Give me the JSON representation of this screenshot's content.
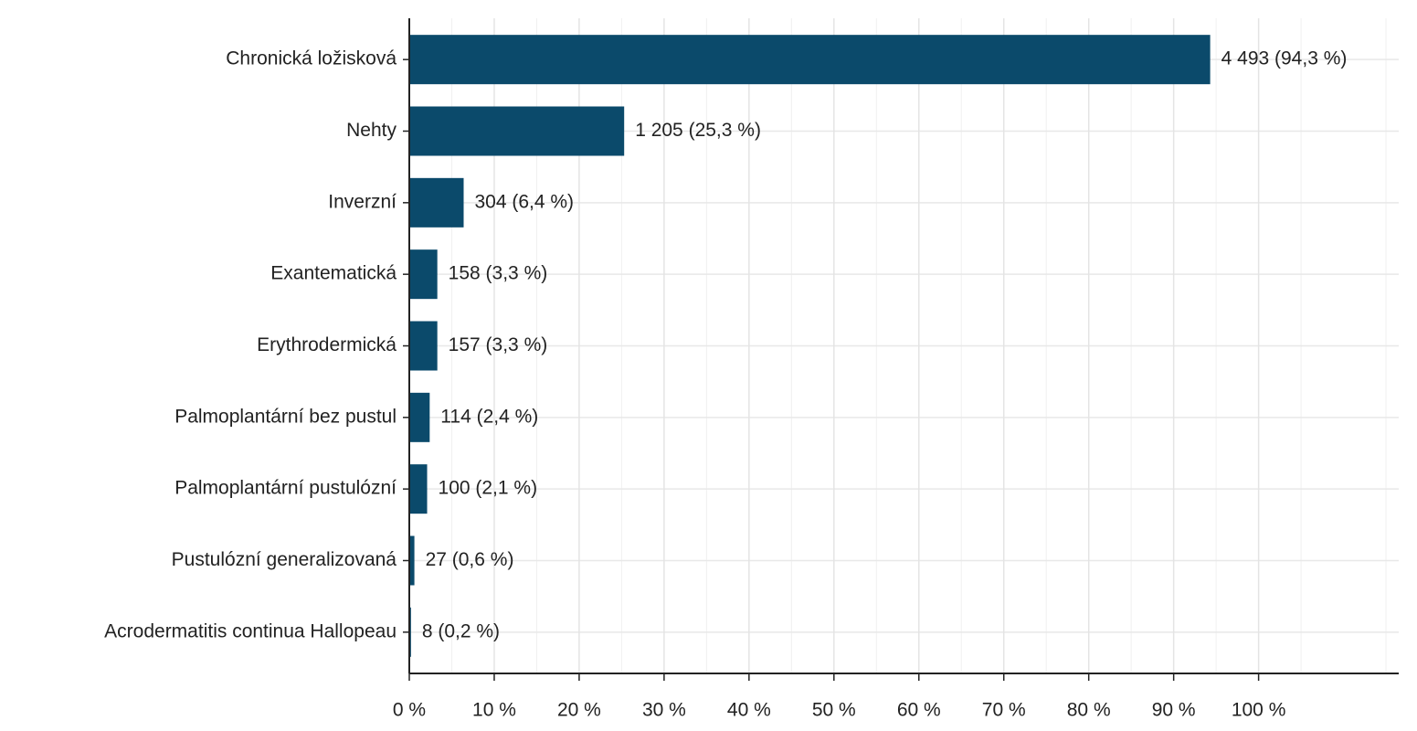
{
  "chart_data": {
    "type": "bar",
    "orientation": "horizontal",
    "categories": [
      "Chronická ložisková",
      "Nehty",
      "Inverzní",
      "Exantematická",
      "Erythrodermická",
      "Palmoplantární bez pustul",
      "Palmoplantární pustulózní",
      "Pustulózní generalizovaná",
      "Acrodermatitis continua Hallopeau"
    ],
    "values": [
      94.3,
      25.3,
      6.4,
      3.3,
      3.3,
      2.4,
      2.1,
      0.6,
      0.2
    ],
    "value_labels": [
      "4 493 (94,3 %)",
      "1 205 (25,3 %)",
      "304 (6,4 %)",
      "158 (3,3 %)",
      "157 (3,3 %)",
      "114 (2,4 %)",
      "100 (2,1 %)",
      "27 (0,6 %)",
      "8 (0,2 %)"
    ],
    "color": "#0b4a6b",
    "xlim": [
      0,
      116.5
    ],
    "xticks": [
      {
        "value": 0,
        "label": "0 %"
      },
      {
        "value": 10,
        "label": "10 %"
      },
      {
        "value": 20,
        "label": "20 %"
      },
      {
        "value": 30,
        "label": "30 %"
      },
      {
        "value": 40,
        "label": "40 %"
      },
      {
        "value": 50,
        "label": "50 %"
      },
      {
        "value": 60,
        "label": "60 %"
      },
      {
        "value": 70,
        "label": "70 %"
      },
      {
        "value": 80,
        "label": "80 %"
      },
      {
        "value": 90,
        "label": "90 %"
      },
      {
        "value": 100,
        "label": "100 %"
      }
    ],
    "grid": true
  }
}
